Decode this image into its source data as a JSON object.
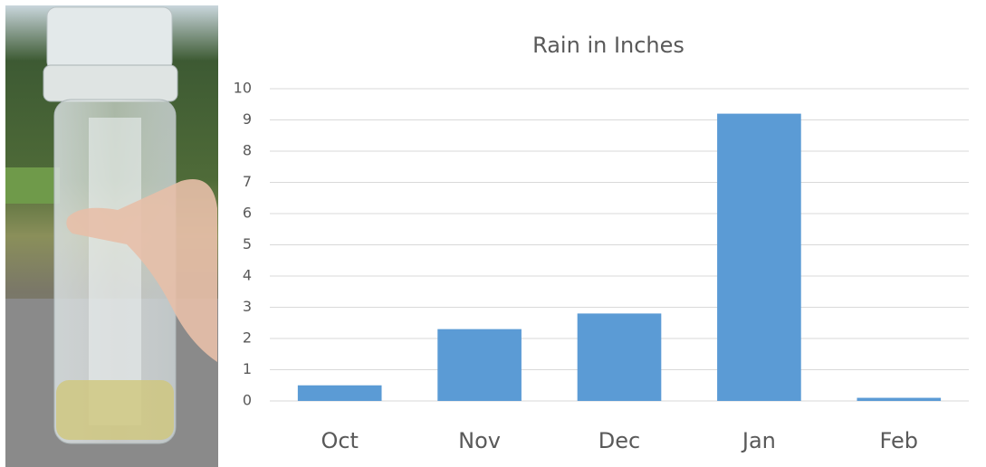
{
  "chart_data": {
    "type": "bar",
    "title": "Rain in Inches",
    "categories": [
      "Oct",
      "Nov",
      "Dec",
      "Jan",
      "Feb"
    ],
    "values": [
      0.5,
      2.3,
      2.8,
      9.2,
      0.1
    ],
    "color": "#5b9bd5",
    "ylim": [
      0,
      10
    ],
    "yticks": [
      0,
      1,
      2,
      3,
      4,
      5,
      6,
      7,
      8,
      9,
      10
    ],
    "grid": true
  }
}
